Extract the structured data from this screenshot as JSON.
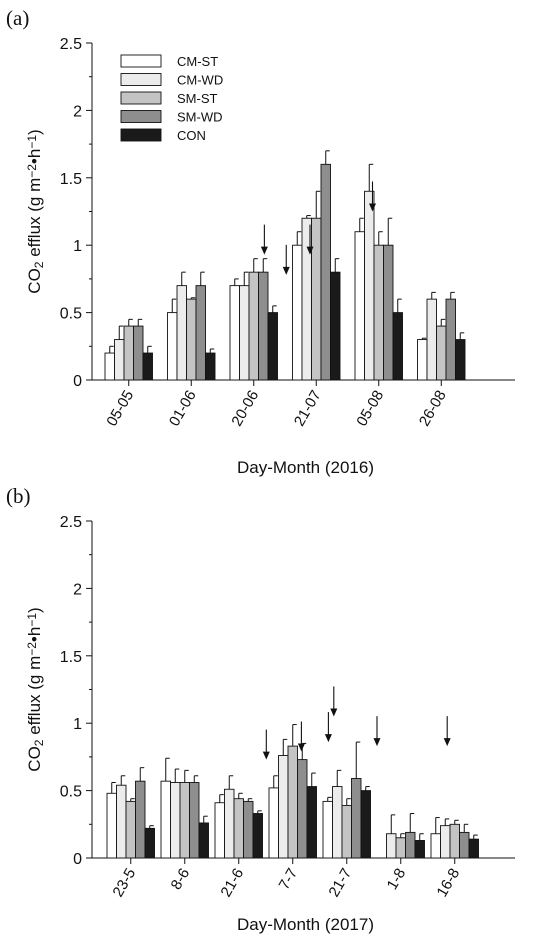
{
  "series_styles": [
    {
      "name": "CM-ST",
      "fill": "#ffffff"
    },
    {
      "name": "CM-WD",
      "fill": "#ececec"
    },
    {
      "name": "SM-ST",
      "fill": "#c4c4c4"
    },
    {
      "name": "SM-WD",
      "fill": "#8e8e8e"
    },
    {
      "name": "CON",
      "fill": "#1a1a1a"
    }
  ],
  "chart_data": [
    {
      "type": "bar",
      "panel_label": "(a)",
      "xlabel": "Day-Month (2016)",
      "ylabel_parts": [
        "CO",
        "2",
        " efflux (g m",
        "−2",
        "•h",
        "−1",
        ")"
      ],
      "ylim": [
        0,
        2.5
      ],
      "yticks": [
        "0",
        "0.5",
        "1",
        "1.5",
        "2",
        "2.5"
      ],
      "legend": "top-left",
      "categories": [
        "05-05",
        "01-06",
        "20-06",
        "21-07",
        "05-08",
        "26-08"
      ],
      "series": [
        {
          "name": "CM-ST",
          "values": [
            0.2,
            0.5,
            0.7,
            1.0,
            1.1,
            0.3
          ],
          "errors": [
            0.05,
            0.1,
            0.05,
            0.1,
            0.1,
            0.01
          ]
        },
        {
          "name": "CM-WD",
          "values": [
            0.3,
            0.7,
            0.7,
            1.2,
            1.4,
            0.6
          ],
          "errors": [
            0.1,
            0.1,
            0.1,
            0.02,
            0.2,
            0.05
          ]
        },
        {
          "name": "SM-ST",
          "values": [
            0.4,
            0.6,
            0.8,
            1.2,
            1.0,
            0.4
          ],
          "errors": [
            0.05,
            0.01,
            0.1,
            0.2,
            0.1,
            0.05
          ]
        },
        {
          "name": "SM-WD",
          "values": [
            0.4,
            0.7,
            0.8,
            1.6,
            1.0,
            0.6
          ],
          "errors": [
            0.05,
            0.1,
            0.1,
            0.1,
            0.2,
            0.05
          ]
        },
        {
          "name": "CON",
          "values": [
            0.2,
            0.2,
            0.5,
            0.8,
            0.5,
            0.3
          ],
          "errors": [
            0.05,
            0.03,
            0.05,
            0.1,
            0.1,
            0.05
          ]
        }
      ],
      "arrows": [
        {
          "x": 2.55,
          "y_tip": 0.93
        },
        {
          "x": 2.9,
          "y_tip": 0.78
        },
        {
          "x": 3.28,
          "y_tip": 0.93
        },
        {
          "x": 4.28,
          "y_tip": 1.25
        }
      ]
    },
    {
      "type": "bar",
      "panel_label": "(b)",
      "xlabel": "Day-Month (2017)",
      "ylabel_parts": [
        "CO",
        "2",
        " efflux (g m",
        "−2",
        "•h",
        "−1",
        ")"
      ],
      "ylim": [
        0,
        2.5
      ],
      "yticks": [
        "0",
        "0.5",
        "1",
        "1.5",
        "2",
        "2.5"
      ],
      "categories": [
        "23-5",
        "8-6",
        "21-6",
        "7-7",
        "21-7",
        "1-8",
        "16-8"
      ],
      "series": [
        {
          "name": "CM-ST",
          "values": [
            0.48,
            0.57,
            0.41,
            0.52,
            0.42,
            0.0,
            0.18
          ],
          "errors": [
            0.08,
            0.17,
            0.06,
            0.09,
            0.03,
            0.0,
            0.12
          ]
        },
        {
          "name": "CM-WD",
          "values": [
            0.54,
            0.56,
            0.51,
            0.76,
            0.53,
            0.18,
            0.24
          ],
          "errors": [
            0.07,
            0.1,
            0.1,
            0.12,
            0.12,
            0.14,
            0.05
          ]
        },
        {
          "name": "SM-ST",
          "values": [
            0.42,
            0.56,
            0.44,
            0.83,
            0.39,
            0.15,
            0.25
          ],
          "errors": [
            0.02,
            0.09,
            0.04,
            0.16,
            0.05,
            0.03,
            0.03
          ]
        },
        {
          "name": "SM-WD",
          "values": [
            0.57,
            0.56,
            0.42,
            0.73,
            0.59,
            0.19,
            0.19
          ],
          "errors": [
            0.1,
            0.05,
            0.02,
            0.12,
            0.27,
            0.14,
            0.06
          ]
        },
        {
          "name": "CON",
          "values": [
            0.22,
            0.26,
            0.33,
            0.53,
            0.5,
            0.13,
            0.14
          ],
          "errors": [
            0.02,
            0.05,
            0.02,
            0.1,
            0.03,
            0.05,
            0.03
          ]
        }
      ],
      "arrows": [
        {
          "x": 2.95,
          "y_tip": 0.73
        },
        {
          "x": 3.6,
          "y_tip": 0.79
        },
        {
          "x": 4.1,
          "y_tip": 0.86
        },
        {
          "x": 4.2,
          "y_tip": 1.05
        },
        {
          "x": 5.0,
          "y_tip": 0.83
        },
        {
          "x": 6.3,
          "y_tip": 0.83
        }
      ]
    }
  ]
}
